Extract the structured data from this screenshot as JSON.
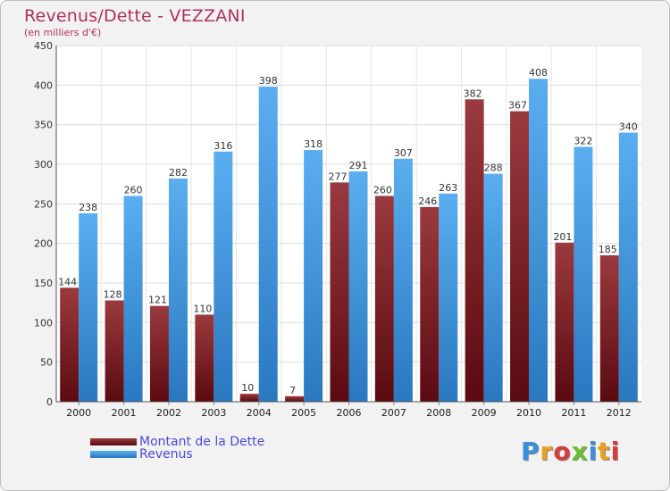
{
  "title": "Revenus/Dette - VEZZANI",
  "subtitle": "(en milliers d'€)",
  "logo_text": "Proxiti",
  "legend": [
    {
      "label": "Montant de la Dette",
      "color": "#7a1a1f"
    },
    {
      "label": "Revenus",
      "color": "#3a8fdc"
    }
  ],
  "chart_data": {
    "type": "bar",
    "categories": [
      "2000",
      "2001",
      "2002",
      "2003",
      "2004",
      "2005",
      "2006",
      "2007",
      "2008",
      "2009",
      "2010",
      "2011",
      "2012"
    ],
    "series": [
      {
        "name": "Montant de la Dette",
        "color": "#7a1a1f",
        "values": [
          144,
          128,
          121,
          110,
          10,
          7,
          277,
          260,
          246,
          382,
          367,
          201,
          185
        ]
      },
      {
        "name": "Revenus",
        "color": "#3a8fdc",
        "values": [
          238,
          260,
          282,
          316,
          398,
          318,
          291,
          307,
          263,
          288,
          408,
          322,
          340
        ]
      }
    ],
    "ylim": [
      0,
      450
    ],
    "yticks": [
      0,
      50,
      100,
      150,
      200,
      250,
      300,
      350,
      400,
      450
    ],
    "grid": true,
    "legend_position": "bottom-left"
  }
}
